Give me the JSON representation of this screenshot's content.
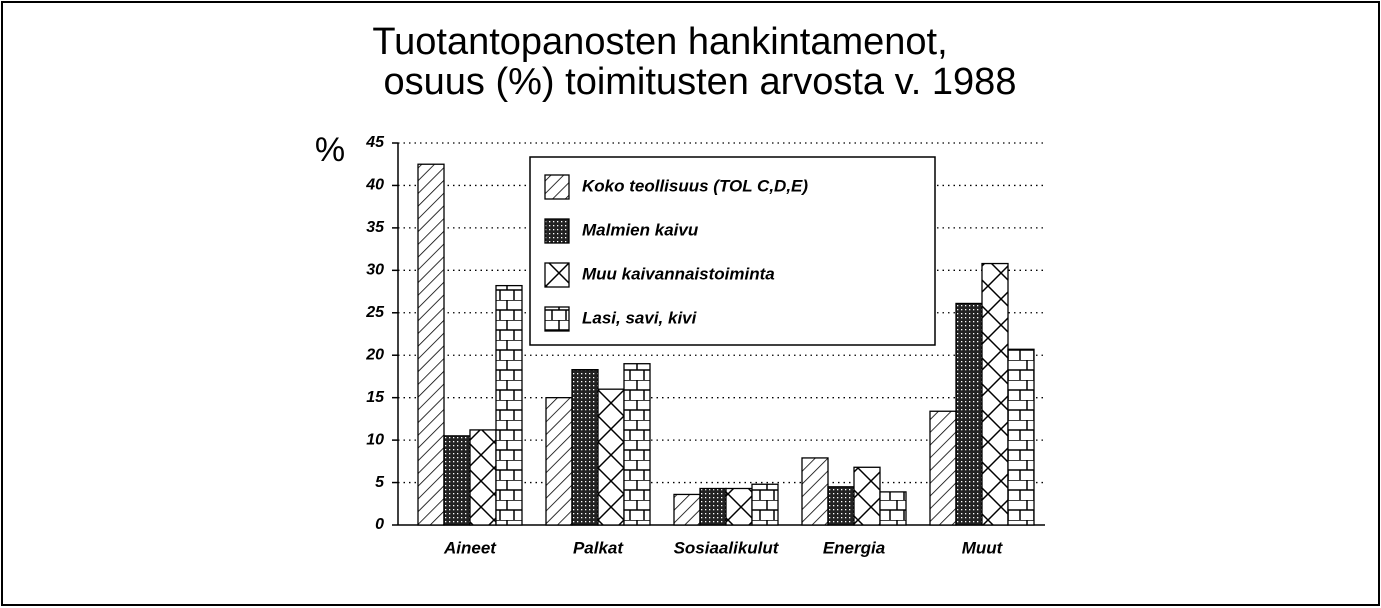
{
  "chart_data": {
    "type": "bar",
    "title": [
      "Tuotantopanosten hankintamenot,",
      "osuus (%) toimitusten arvosta v. 1988"
    ],
    "ylabel": "%",
    "categories": [
      "Aineet",
      "Palkat",
      "Sosiaalikulut",
      "Energia",
      "Muut"
    ],
    "series": [
      {
        "name": "Koko teollisuus (TOL C,D,E)",
        "color": "#000000",
        "values": [
          42.5,
          15,
          3.6,
          7.9,
          13.4
        ]
      },
      {
        "name": "Malmien kaivu",
        "color": "#000000",
        "values": [
          10.5,
          18.3,
          4.3,
          4.5,
          26.1
        ]
      },
      {
        "name": "Muu kaivannaistoiminta",
        "color": "#000000",
        "values": [
          11.2,
          16,
          4.3,
          6.8,
          30.8
        ]
      },
      {
        "name": "Lasi, savi, kivi",
        "color": "#000000",
        "values": [
          28.2,
          19,
          4.8,
          3.9,
          20.7
        ]
      }
    ],
    "ylim": [
      0,
      45
    ],
    "yticks": [
      0,
      5,
      10,
      15,
      20,
      25,
      30,
      35,
      40,
      45
    ],
    "grid": true
  }
}
